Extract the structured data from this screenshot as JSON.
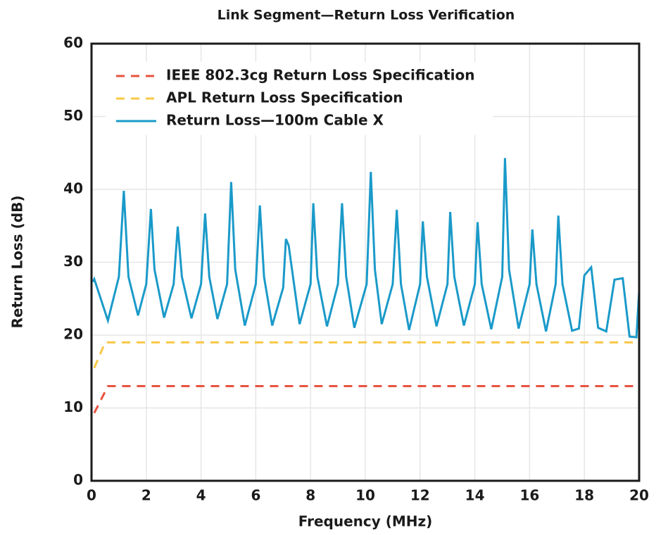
{
  "chart_data": {
    "type": "line",
    "title": "Link Segment—Return Loss Verification",
    "xlabel": "Frequency (MHz)",
    "ylabel": "Return Loss (dB)",
    "xlim": [
      0,
      20
    ],
    "xticks": [
      0,
      2,
      4,
      6,
      8,
      10,
      12,
      14,
      16,
      18,
      20
    ],
    "ylim": [
      0,
      60
    ],
    "yticks": [
      0,
      10,
      20,
      30,
      40,
      50,
      60
    ],
    "grid": true,
    "legend": "upper left",
    "series": [
      {
        "name": "IEEE 802.3cg Return Loss Specification",
        "color": "#e8533f",
        "style": "dashed",
        "x": [
          0.1,
          0.6,
          20
        ],
        "values": [
          9.3,
          13,
          13
        ]
      },
      {
        "name": "APL Return Loss Specification",
        "color": "#f9c846",
        "style": "dashed",
        "x": [
          0.1,
          0.5,
          20
        ],
        "values": [
          15.5,
          19,
          19
        ]
      },
      {
        "name": "Return Loss—100m Cable X",
        "color": "#1a9ac9",
        "style": "solid",
        "x": [
          0.05,
          0.1,
          0.6,
          1.0,
          1.18,
          1.35,
          1.7,
          2.0,
          2.17,
          2.3,
          2.65,
          3.0,
          3.15,
          3.3,
          3.65,
          4.0,
          4.15,
          4.3,
          4.6,
          4.95,
          5.1,
          5.25,
          5.6,
          6.0,
          6.15,
          6.3,
          6.6,
          7.0,
          7.1,
          7.2,
          7.6,
          8.0,
          8.1,
          8.25,
          8.6,
          9.0,
          9.15,
          9.3,
          9.6,
          10.05,
          10.2,
          10.35,
          10.6,
          11.0,
          11.15,
          11.3,
          11.6,
          12.0,
          12.1,
          12.25,
          12.6,
          13.0,
          13.1,
          13.25,
          13.6,
          14.0,
          14.1,
          14.25,
          14.6,
          15.0,
          15.1,
          15.25,
          15.6,
          16.0,
          16.1,
          16.25,
          16.6,
          16.95,
          17.05,
          17.2,
          17.55,
          17.8,
          18.0,
          18.25,
          18.5,
          18.8,
          19.1,
          19.4,
          19.65,
          19.9,
          20.0
        ],
        "values": [
          27.3,
          27.7,
          22.0,
          28.0,
          39.8,
          28.0,
          22.7,
          27.0,
          37.3,
          29.0,
          22.4,
          27.0,
          34.9,
          28.0,
          22.3,
          27.0,
          36.7,
          28.0,
          22.2,
          27.0,
          41.0,
          29.0,
          21.3,
          27.0,
          37.8,
          28.0,
          21.3,
          26.5,
          33.2,
          32.3,
          21.5,
          27.0,
          38.1,
          28.0,
          21.2,
          27.0,
          38.1,
          28.0,
          21.0,
          27.0,
          42.4,
          29.0,
          21.5,
          27.0,
          37.2,
          27.0,
          20.7,
          27.0,
          35.6,
          28.0,
          21.2,
          27.0,
          36.9,
          28.0,
          21.3,
          27.0,
          35.5,
          27.0,
          20.8,
          28.0,
          44.3,
          29.0,
          20.9,
          27.0,
          34.5,
          27.0,
          20.5,
          27.0,
          36.4,
          27.0,
          20.6,
          20.9,
          28.2,
          29.3,
          21.0,
          20.5,
          27.6,
          27.8,
          19.8,
          19.7,
          26.0
        ]
      }
    ]
  }
}
